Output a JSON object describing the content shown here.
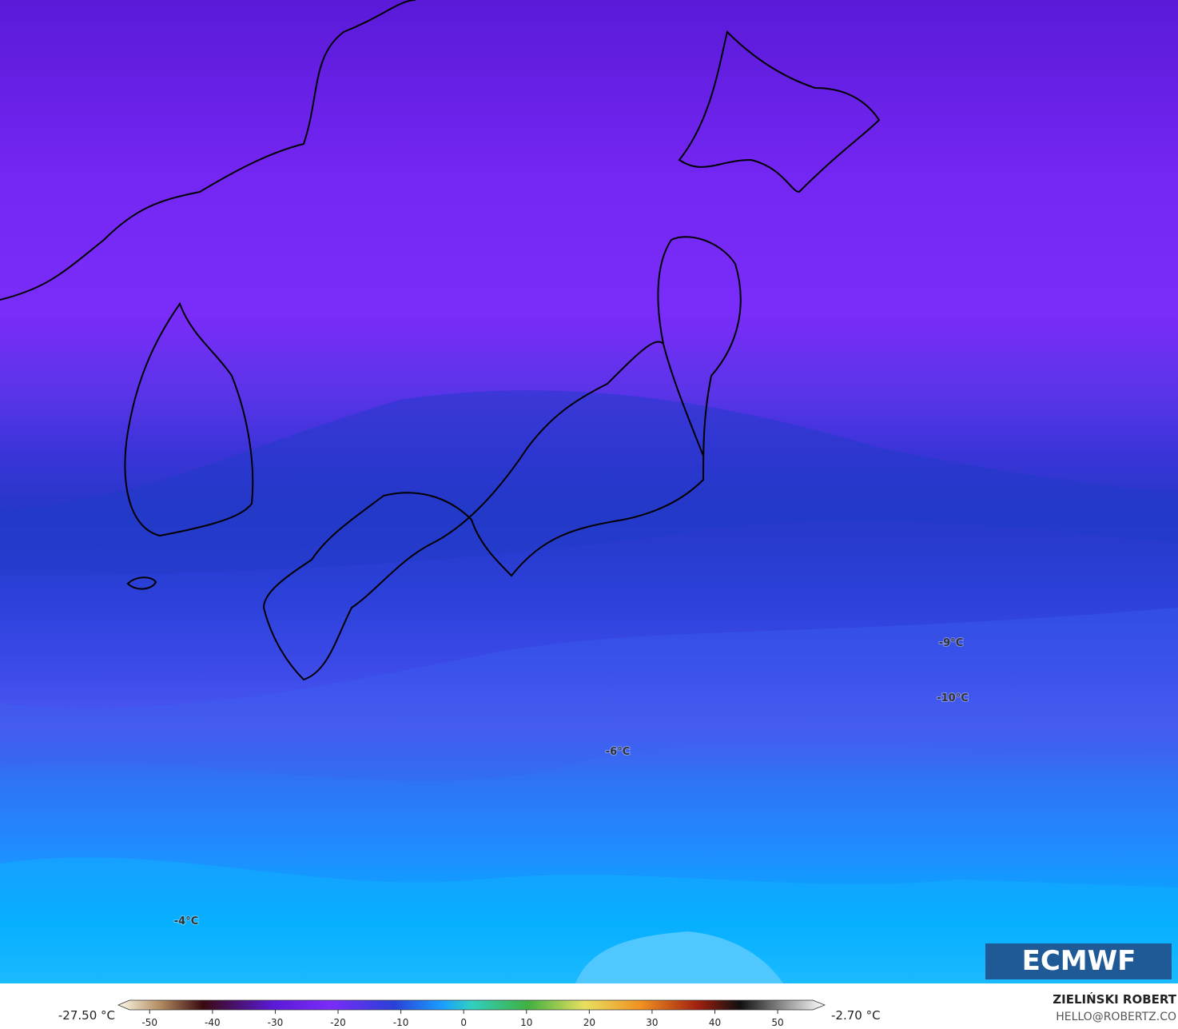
{
  "map": {
    "contour_labels": [
      "-9°C",
      "-10°C",
      "-6°C",
      "-4°C"
    ]
  },
  "logo": "ECMWF",
  "author": {
    "name": "ZIELIŃSKI ROBERT",
    "contact": "HELLO@ROBERTZ.CO"
  },
  "colorbar": {
    "min_label": "-27.50 °C",
    "max_label": "-2.70 °C",
    "lim": [
      -55,
      57.5
    ],
    "ticks": [
      -50,
      -40,
      -30,
      -20,
      -10,
      0,
      10,
      20,
      30,
      40,
      50
    ]
  }
}
